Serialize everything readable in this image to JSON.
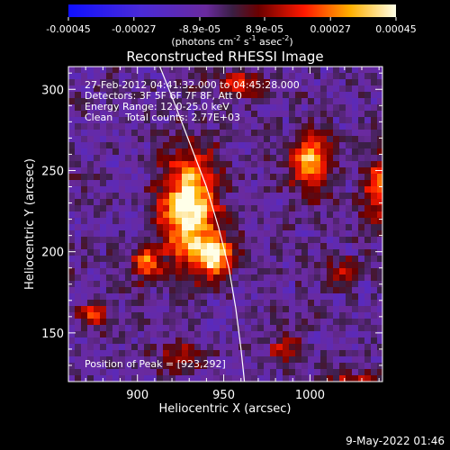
{
  "chart_data": {
    "type": "heatmap",
    "title": "Reconstructed RHESSI Image",
    "xlabel": "Heliocentric X (arcsec)",
    "ylabel": "Heliocentric Y (arcsec)",
    "xlim": [
      860,
      1042
    ],
    "ylim": [
      120,
      314
    ],
    "x_ticks": [
      900,
      950,
      1000
    ],
    "y_ticks": [
      150,
      200,
      250,
      300
    ],
    "colorbar": {
      "ticks": [
        "-0.00045",
        "-0.00027",
        "-8.9e-05",
        "8.9e-05",
        "0.00027",
        "0.00045"
      ],
      "tick_values": [
        -0.00045,
        -0.00027,
        -8.9e-05,
        8.9e-05,
        0.00027,
        0.00045
      ],
      "range": [
        -0.00045,
        0.00045
      ],
      "units_label": "(photons cm",
      "units_exp1": "-2",
      "units_mid": " s",
      "units_exp2": "-1",
      "units_mid2": " asec",
      "units_exp3": "-2",
      "units_close": ")"
    },
    "annotations": [
      "27-Feb-2012 04:41:32.000 to 04:45:28.000",
      "Detectors: 3F 5F 6F 7F 8F, Att 0",
      "Energy Range: 12.0-25.0 keV",
      "Clean    Total counts: 2.77E+03"
    ],
    "peak_label": "Position of Peak = [923,292]",
    "peak": {
      "x": 923,
      "y": 292
    },
    "limb_curve": [
      [
        913,
        314
      ],
      [
        922,
        290
      ],
      [
        931,
        265
      ],
      [
        940,
        240
      ],
      [
        947,
        215
      ],
      [
        953,
        190
      ],
      [
        957,
        165
      ],
      [
        960,
        140
      ],
      [
        962,
        120
      ]
    ],
    "blobs": [
      {
        "x": 930,
        "y": 232,
        "sx": 11,
        "sy": 22,
        "amp": 1.0
      },
      {
        "x": 945,
        "y": 205,
        "sx": 8,
        "sy": 8,
        "amp": 0.8
      },
      {
        "x": 905,
        "y": 200,
        "sx": 6,
        "sy": 7,
        "amp": 0.6
      },
      {
        "x": 1000,
        "y": 260,
        "sx": 8,
        "sy": 12,
        "amp": 0.75
      },
      {
        "x": 1040,
        "y": 240,
        "sx": 6,
        "sy": 15,
        "amp": 0.55
      },
      {
        "x": 1022,
        "y": 128,
        "sx": 10,
        "sy": 6,
        "amp": 0.55
      },
      {
        "x": 985,
        "y": 150,
        "sx": 6,
        "sy": 6,
        "amp": 0.45
      },
      {
        "x": 875,
        "y": 170,
        "sx": 6,
        "sy": 6,
        "amp": 0.45
      },
      {
        "x": 960,
        "y": 305,
        "sx": 9,
        "sy": 6,
        "amp": 0.45
      },
      {
        "x": 1020,
        "y": 195,
        "sx": 6,
        "sy": 6,
        "amp": 0.35
      },
      {
        "x": 925,
        "y": 145,
        "sx": 8,
        "sy": 6,
        "amp": 0.35
      }
    ]
  },
  "footer": {
    "timestamp": "9-May-2022 01:46"
  }
}
